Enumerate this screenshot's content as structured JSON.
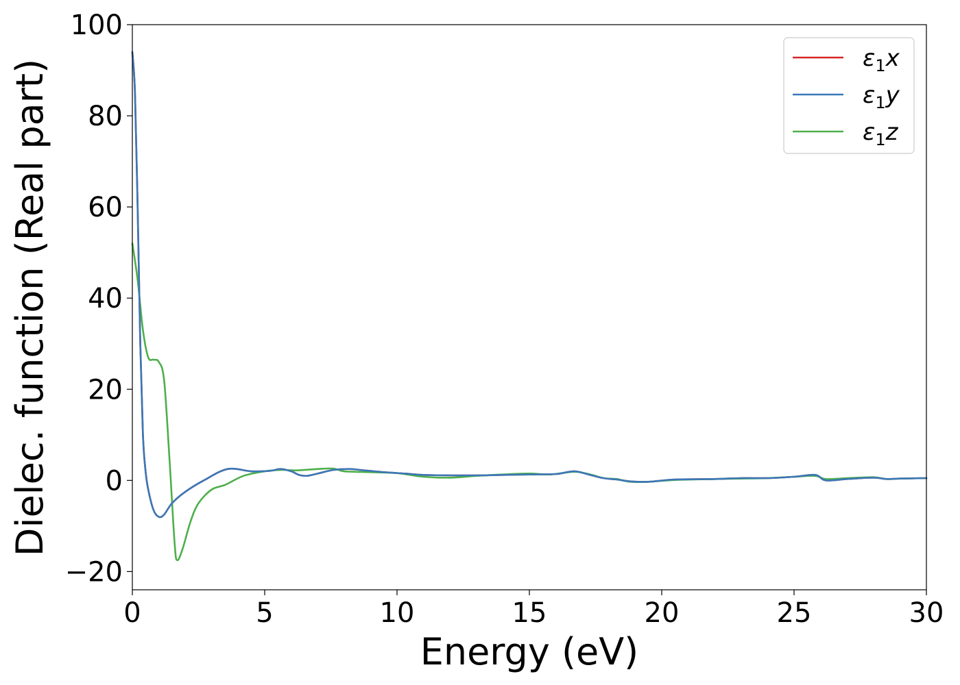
{
  "chart_data": {
    "type": "line",
    "xlabel": "Energy (eV)",
    "ylabel": "Dielec. function (Real part)",
    "xlim": [
      0,
      30
    ],
    "ylim": [
      -24,
      100
    ],
    "xticks": [
      0,
      5,
      10,
      15,
      20,
      25,
      30
    ],
    "xtick_labels": [
      "0",
      "5",
      "10",
      "15",
      "20",
      "25",
      "30"
    ],
    "yticks": [
      100,
      80,
      60,
      40,
      20,
      0,
      -20
    ],
    "ytick_labels": [
      "100",
      "80",
      "60",
      "40",
      "20",
      "0",
      "−20"
    ],
    "grid": false,
    "legend_position": "top-right",
    "series": [
      {
        "name": "ε₁x",
        "legend_base": "ε",
        "legend_sub": "1",
        "legend_suffix": "x",
        "color": "#d62728",
        "x": [
          0,
          0.1,
          0.2,
          0.3,
          0.4,
          0.5,
          0.6,
          0.8,
          1.0,
          1.2,
          1.5,
          2.0,
          2.7,
          3.6,
          4.5,
          5.2,
          5.6,
          6.0,
          6.3,
          6.6,
          7.0,
          7.6,
          8.2,
          8.6,
          9.5,
          10.3,
          11.0,
          12.0,
          13.0,
          14.0,
          15.0,
          16.0,
          16.7,
          17.3,
          17.8,
          18.3,
          18.8,
          19.5,
          20.5,
          22.0,
          23.0,
          24.0,
          25.0,
          25.8,
          26.2,
          27.0,
          28.0,
          28.5,
          29.0,
          30.0
        ],
        "y": [
          94,
          85,
          60,
          30,
          10,
          2,
          -2,
          -6.5,
          -8,
          -7.5,
          -5,
          -2.5,
          0,
          2.5,
          2,
          2.1,
          2.5,
          2.0,
          1.2,
          1.0,
          1.5,
          2.3,
          2.5,
          2.3,
          1.8,
          1.5,
          1.2,
          1.1,
          1.1,
          1.2,
          1.3,
          1.4,
          2.0,
          1.2,
          0.5,
          0.2,
          -0.2,
          -0.3,
          0.2,
          0.3,
          0.5,
          0.5,
          0.8,
          1.2,
          0.0,
          0.3,
          0.6,
          0.3,
          0.4,
          0.5
        ]
      },
      {
        "name": "ε₁y",
        "legend_base": "ε",
        "legend_sub": "1",
        "legend_suffix": "y",
        "color": "#3a78b8",
        "x": [
          0,
          0.1,
          0.2,
          0.3,
          0.4,
          0.5,
          0.6,
          0.8,
          1.0,
          1.2,
          1.5,
          2.0,
          2.7,
          3.6,
          4.5,
          5.2,
          5.6,
          6.0,
          6.3,
          6.6,
          7.0,
          7.6,
          8.2,
          8.6,
          9.5,
          10.3,
          11.0,
          12.0,
          13.0,
          14.0,
          15.0,
          16.0,
          16.7,
          17.3,
          17.8,
          18.3,
          18.8,
          19.5,
          20.5,
          22.0,
          23.0,
          24.0,
          25.0,
          25.8,
          26.2,
          27.0,
          28.0,
          28.5,
          29.0,
          30.0
        ],
        "y": [
          94,
          85,
          60,
          30,
          10,
          2,
          -2,
          -6.5,
          -8,
          -7.5,
          -5,
          -2.5,
          0,
          2.5,
          2,
          2.1,
          2.5,
          2.0,
          1.2,
          1.0,
          1.5,
          2.3,
          2.5,
          2.3,
          1.8,
          1.5,
          1.2,
          1.1,
          1.1,
          1.2,
          1.3,
          1.4,
          2.0,
          1.2,
          0.5,
          0.2,
          -0.2,
          -0.3,
          0.2,
          0.3,
          0.5,
          0.5,
          0.8,
          1.2,
          0.0,
          0.3,
          0.6,
          0.3,
          0.4,
          0.5
        ]
      },
      {
        "name": "ε₁z",
        "legend_base": "ε",
        "legend_sub": "1",
        "legend_suffix": "z",
        "color": "#4daf4a",
        "x": [
          0,
          0.2,
          0.4,
          0.6,
          0.8,
          1.0,
          1.2,
          1.4,
          1.6,
          1.7,
          1.9,
          2.2,
          2.5,
          3.0,
          3.5,
          4.2,
          5.0,
          5.6,
          6.2,
          7.0,
          7.6,
          8.0,
          9.0,
          10.0,
          11.0,
          12.0,
          13.0,
          14.0,
          15.0,
          15.8,
          16.7,
          17.3,
          17.8,
          18.3,
          18.8,
          19.5,
          20.5,
          22.0,
          23.0,
          24.0,
          25.0,
          25.8,
          26.2,
          27.0,
          28.0,
          28.5,
          29.0,
          30.0
        ],
        "y": [
          52,
          44,
          33,
          27,
          26.5,
          26,
          22,
          5,
          -14,
          -17.5,
          -15,
          -9,
          -5,
          -2,
          -1,
          1,
          2,
          2.3,
          2.2,
          2.5,
          2.6,
          2.0,
          1.8,
          1.6,
          0.8,
          0.6,
          1.0,
          1.3,
          1.5,
          1.3,
          1.9,
          1.3,
          0.5,
          0.3,
          -0.3,
          -0.3,
          0.1,
          0.3,
          0.4,
          0.5,
          0.8,
          1.0,
          0.3,
          0.5,
          0.7,
          0.3,
          0.4,
          0.5
        ]
      }
    ]
  }
}
